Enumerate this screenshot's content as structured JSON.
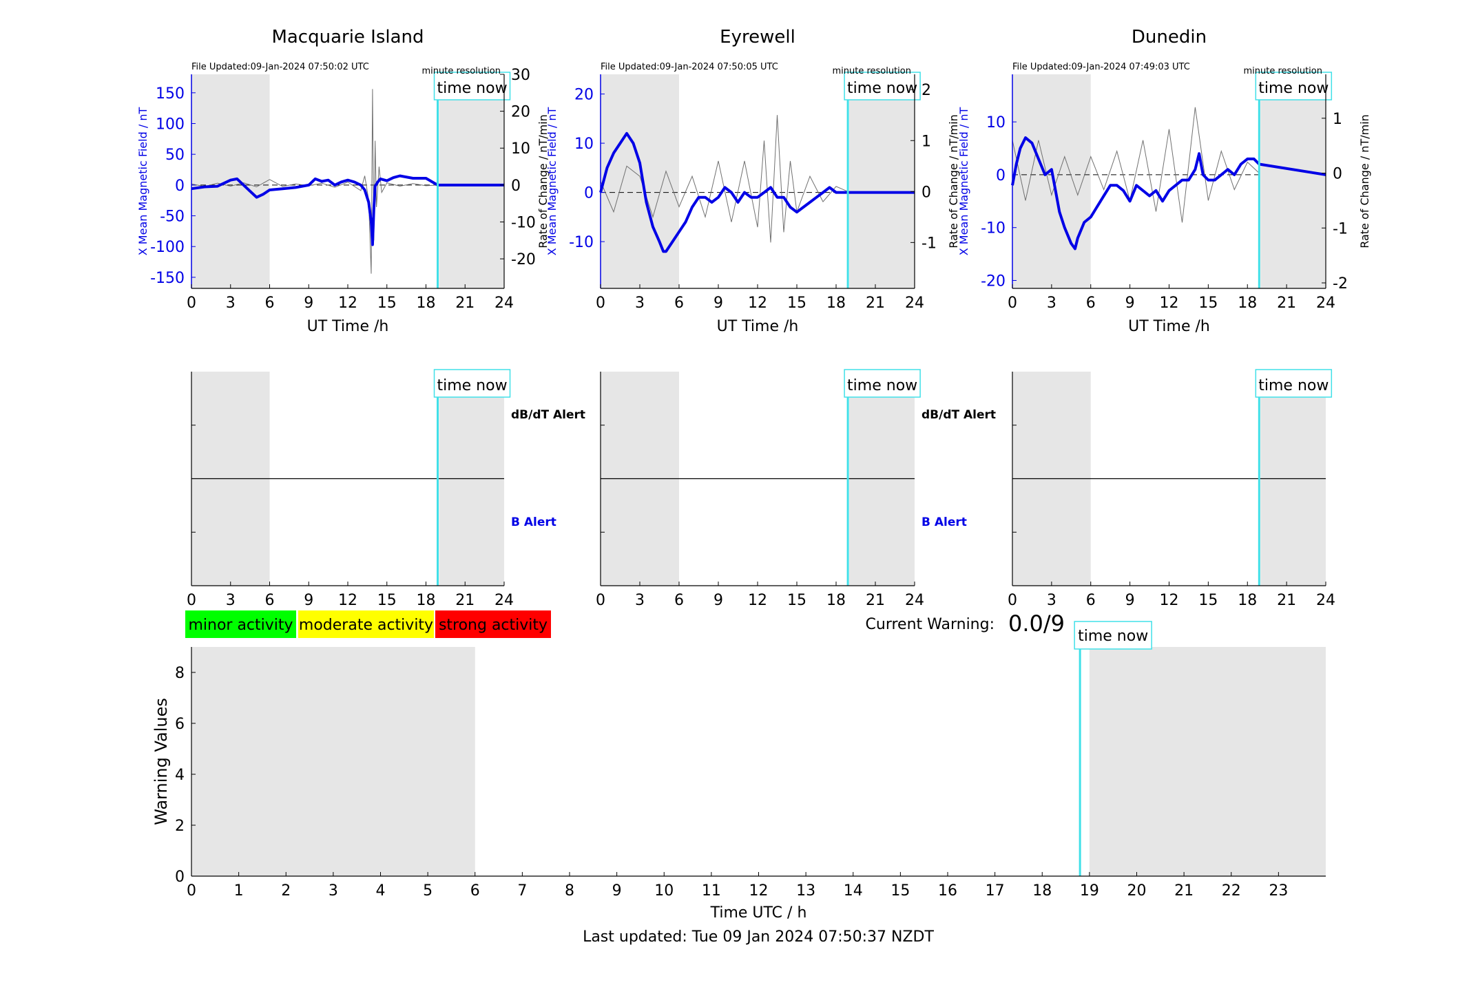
{
  "colors": {
    "field_line": "#0000e6",
    "rate_line": "#707070",
    "night_shade": "#e6e6e6",
    "time_now_line": "#40e0e8",
    "minor": "#00ff00",
    "moderate": "#ffff00",
    "strong": "#ff0000"
  },
  "labels": {
    "time_now": "time now",
    "minute_resolution": "minute resolution",
    "ut_time": "UT Time /h",
    "y_left": "X Mean Magnetic Field / nT",
    "y_right": "Rate of Change / nT/min",
    "dbdt_alert": "dB/dT Alert",
    "b_alert": "B Alert",
    "current_warning": "Current Warning:",
    "current_warning_value": "0.0/9",
    "warning_values": "Warning Values",
    "time_utc": "Time UTC / h",
    "last_updated": "Last updated: Tue 09 Jan 2024 07:50:37 NZDT"
  },
  "legend": {
    "minor": "minor activity",
    "moderate": "moderate activity",
    "strong": "strong activity"
  },
  "chart_data": [
    {
      "type": "line",
      "title": "Macquarie Island",
      "file_updated": "File Updated:09-Jan-2024 07:50:02 UTC",
      "xlabel": "UT Time /h",
      "ylabel": "X Mean Magnetic Field / nT",
      "ylabel_right": "Rate of Change / nT/min",
      "xlim": [
        0,
        24
      ],
      "xticks": [
        "0",
        "3",
        "6",
        "9",
        "12",
        "15",
        "18",
        "21",
        "24"
      ],
      "ylim": [
        -168,
        180
      ],
      "yticks": [
        "-150",
        "-100",
        "-50",
        "0",
        "50",
        "100",
        "150"
      ],
      "ylim_right": [
        -28,
        30
      ],
      "yticks_right": [
        "-20",
        "-10",
        "0",
        "10",
        "20",
        "30"
      ],
      "night_shading": [
        [
          0,
          6
        ],
        [
          19,
          24
        ]
      ],
      "time_now": 18.9,
      "series": [
        {
          "name": "X Mean Magnetic Field",
          "axis": "left",
          "x": [
            0,
            1,
            2,
            3,
            3.5,
            4,
            4.5,
            5,
            5.5,
            6,
            7,
            8,
            9,
            9.5,
            10,
            10.5,
            11,
            11.5,
            12,
            12.5,
            13,
            13.3,
            13.6,
            13.8,
            13.9,
            14,
            14.1,
            14.3,
            14.5,
            15,
            15.5,
            16,
            17,
            18,
            18.9,
            24
          ],
          "y": [
            -6,
            -3,
            -2,
            8,
            10,
            0,
            -10,
            -20,
            -15,
            -8,
            -6,
            -4,
            0,
            10,
            6,
            8,
            0,
            5,
            8,
            5,
            0,
            -8,
            -28,
            -60,
            -97,
            -40,
            -2,
            5,
            10,
            7,
            12,
            15,
            11,
            11,
            0,
            0
          ]
        },
        {
          "name": "Rate of Change",
          "axis": "right",
          "x": [
            0,
            1,
            2,
            3,
            4,
            5,
            6,
            7,
            8,
            9,
            10,
            11,
            12,
            13,
            13.3,
            13.6,
            13.8,
            13.9,
            14,
            14.1,
            14.2,
            14.4,
            14.6,
            15,
            16,
            17,
            18,
            18.9
          ],
          "y": [
            0.3,
            -0.4,
            0.5,
            -0.3,
            0.6,
            -0.5,
            1.5,
            -0.4,
            0.3,
            -0.2,
            0.5,
            -0.6,
            0.8,
            -1.5,
            2.5,
            -4,
            -24,
            26,
            -15,
            12,
            -6,
            5,
            -2,
            0.6,
            -0.3,
            0.4,
            -0.2,
            0
          ]
        }
      ]
    },
    {
      "type": "line",
      "title": "Eyrewell",
      "file_updated": "File Updated:09-Jan-2024 07:50:05 UTC",
      "xlabel": "UT Time /h",
      "ylabel": "X Mean Magnetic Field / nT",
      "ylabel_right": "Rate of Change / nT/min",
      "xlim": [
        0,
        24
      ],
      "xticks": [
        "0",
        "3",
        "6",
        "9",
        "12",
        "15",
        "18",
        "21",
        "24"
      ],
      "ylim": [
        -19.5,
        24
      ],
      "yticks": [
        "-10",
        "0",
        "10",
        "20"
      ],
      "ylim_right": [
        -1.9,
        2.3
      ],
      "yticks_right": [
        "-1",
        "0",
        "1",
        "2"
      ],
      "night_shading": [
        [
          0,
          6
        ],
        [
          19,
          24
        ]
      ],
      "time_now": 18.9,
      "series": [
        {
          "name": "X Mean Magnetic Field",
          "axis": "left",
          "x": [
            0,
            0.5,
            1,
            1.5,
            2,
            2.5,
            3,
            3.5,
            4,
            4.5,
            4.8,
            5,
            5.5,
            6,
            6.5,
            7,
            7.5,
            8,
            8.5,
            9,
            9.5,
            10,
            10.5,
            11,
            11.5,
            12,
            12.5,
            13,
            13.5,
            14,
            14.5,
            15,
            15.5,
            16,
            16.5,
            17,
            17.5,
            18,
            18.9,
            24
          ],
          "y": [
            0,
            5,
            8,
            10,
            12,
            10,
            6,
            -2,
            -7,
            -10,
            -12,
            -12,
            -10,
            -8,
            -6,
            -3,
            -1,
            -1,
            -2,
            -1,
            1,
            0,
            -2,
            0,
            -1,
            -1,
            0,
            1,
            -1,
            -1,
            -3,
            -4,
            -3,
            -2,
            -1,
            0,
            1,
            0,
            0,
            0
          ]
        },
        {
          "name": "Rate of Change",
          "axis": "right",
          "x": [
            0,
            1,
            2,
            3,
            4,
            5,
            6,
            7,
            8,
            9,
            10,
            11,
            12,
            12.5,
            13,
            13.5,
            14,
            14.5,
            15,
            16,
            17,
            18,
            18.9
          ],
          "y": [
            0.2,
            -0.4,
            0.5,
            0.3,
            -0.5,
            0.4,
            -0.3,
            0.3,
            -0.5,
            0.6,
            -0.6,
            0.6,
            -0.7,
            1.0,
            -1.0,
            1.5,
            -0.8,
            0.6,
            -0.4,
            0.3,
            -0.2,
            0.1,
            0
          ]
        }
      ]
    },
    {
      "type": "line",
      "title": "Dunedin",
      "file_updated": "File Updated:09-Jan-2024 07:49:03 UTC",
      "xlabel": "UT Time /h",
      "ylabel": "X Mean Magnetic Field / nT",
      "ylabel_right": "Rate of Change / nT/min",
      "xlim": [
        0,
        24
      ],
      "xticks": [
        "0",
        "3",
        "6",
        "9",
        "12",
        "15",
        "18",
        "21",
        "24"
      ],
      "ylim": [
        -21.5,
        19
      ],
      "yticks": [
        "-20",
        "-10",
        "0",
        "10"
      ],
      "ylim_right": [
        -2.1,
        1.8
      ],
      "yticks_right": [
        "-2",
        "-1",
        "0",
        "1"
      ],
      "night_shading": [
        [
          0,
          6
        ],
        [
          19,
          24
        ]
      ],
      "time_now": 18.9,
      "series": [
        {
          "name": "X Mean Magnetic Field",
          "axis": "left",
          "x": [
            0,
            0.3,
            0.6,
            1,
            1.5,
            2,
            2.5,
            3,
            3.3,
            3.6,
            4,
            4.5,
            4.8,
            5,
            5.5,
            6,
            6.5,
            7,
            7.5,
            8,
            8.5,
            9,
            9.5,
            10,
            10.5,
            11,
            11.5,
            12,
            12.5,
            13,
            13.5,
            14,
            14.3,
            14.6,
            15,
            15.5,
            16,
            16.5,
            17,
            17.5,
            18,
            18.5,
            18.9,
            24
          ],
          "y": [
            -2,
            2,
            5,
            7,
            6,
            3,
            0,
            1,
            -3,
            -7,
            -10,
            -13,
            -14,
            -12,
            -9,
            -8,
            -6,
            -4,
            -2,
            -2,
            -3,
            -5,
            -2,
            -3,
            -4,
            -3,
            -5,
            -3,
            -2,
            -1,
            -1,
            1,
            4,
            0,
            -1,
            -1,
            0,
            1,
            0,
            2,
            3,
            3,
            2,
            0
          ]
        },
        {
          "name": "Rate of Change",
          "axis": "right",
          "x": [
            0,
            1,
            2,
            3,
            4,
            5,
            6,
            7,
            8,
            9,
            10,
            11,
            12,
            13,
            14,
            15,
            16,
            17,
            18,
            18.9
          ],
          "y": [
            0.6,
            -0.5,
            0.6,
            -0.4,
            0.3,
            -0.4,
            0.3,
            -0.3,
            0.4,
            -0.5,
            0.6,
            -0.7,
            0.8,
            -0.9,
            1.2,
            -0.5,
            0.4,
            -0.3,
            0.2,
            0
          ]
        }
      ]
    },
    {
      "type": "line",
      "title": "",
      "xlabel": "",
      "ylabel": "",
      "right_labels": [
        "dB/dT Alert",
        "B Alert"
      ],
      "xlim": [
        0,
        24
      ],
      "xticks": [
        "0",
        "3",
        "6",
        "9",
        "12",
        "15",
        "18",
        "21",
        "24"
      ],
      "ylim": [
        -1,
        1
      ],
      "night_shading": [
        [
          0,
          6
        ],
        [
          19,
          24
        ]
      ],
      "time_now": 18.9,
      "series": [
        {
          "x": [
            0,
            24
          ],
          "y": [
            0,
            0
          ]
        }
      ]
    },
    {
      "type": "line",
      "title": "",
      "xlabel": "",
      "ylabel": "",
      "right_labels": [
        "dB/dT Alert",
        "B Alert"
      ],
      "xlim": [
        0,
        24
      ],
      "xticks": [
        "0",
        "3",
        "6",
        "9",
        "12",
        "15",
        "18",
        "21",
        "24"
      ],
      "ylim": [
        -1,
        1
      ],
      "night_shading": [
        [
          0,
          6
        ],
        [
          19,
          24
        ]
      ],
      "time_now": 18.9,
      "series": [
        {
          "x": [
            0,
            24
          ],
          "y": [
            0,
            0
          ]
        }
      ]
    },
    {
      "type": "line",
      "title": "",
      "xlabel": "",
      "ylabel": "",
      "xlim": [
        0,
        24
      ],
      "xticks": [
        "0",
        "3",
        "6",
        "9",
        "12",
        "15",
        "18",
        "21",
        "24"
      ],
      "ylim": [
        -1,
        1
      ],
      "night_shading": [
        [
          0,
          6
        ],
        [
          19,
          24
        ]
      ],
      "time_now": 18.9,
      "series": [
        {
          "x": [
            0,
            24
          ],
          "y": [
            0,
            0
          ]
        }
      ]
    },
    {
      "type": "bar",
      "title": "",
      "xlabel": "Time UTC / h",
      "ylabel": "Warning Values",
      "xlim": [
        0,
        24
      ],
      "xticks": [
        "0",
        "1",
        "2",
        "3",
        "4",
        "5",
        "6",
        "7",
        "8",
        "9",
        "10",
        "11",
        "12",
        "13",
        "14",
        "15",
        "16",
        "17",
        "18",
        "19",
        "20",
        "21",
        "22",
        "23"
      ],
      "ylim": [
        0,
        9
      ],
      "yticks": [
        "0",
        "2",
        "4",
        "6",
        "8"
      ],
      "night_shading": [
        [
          0,
          6
        ],
        [
          19,
          24
        ]
      ],
      "time_now": 18.8,
      "current_warning": "0.0/9",
      "values": []
    }
  ]
}
